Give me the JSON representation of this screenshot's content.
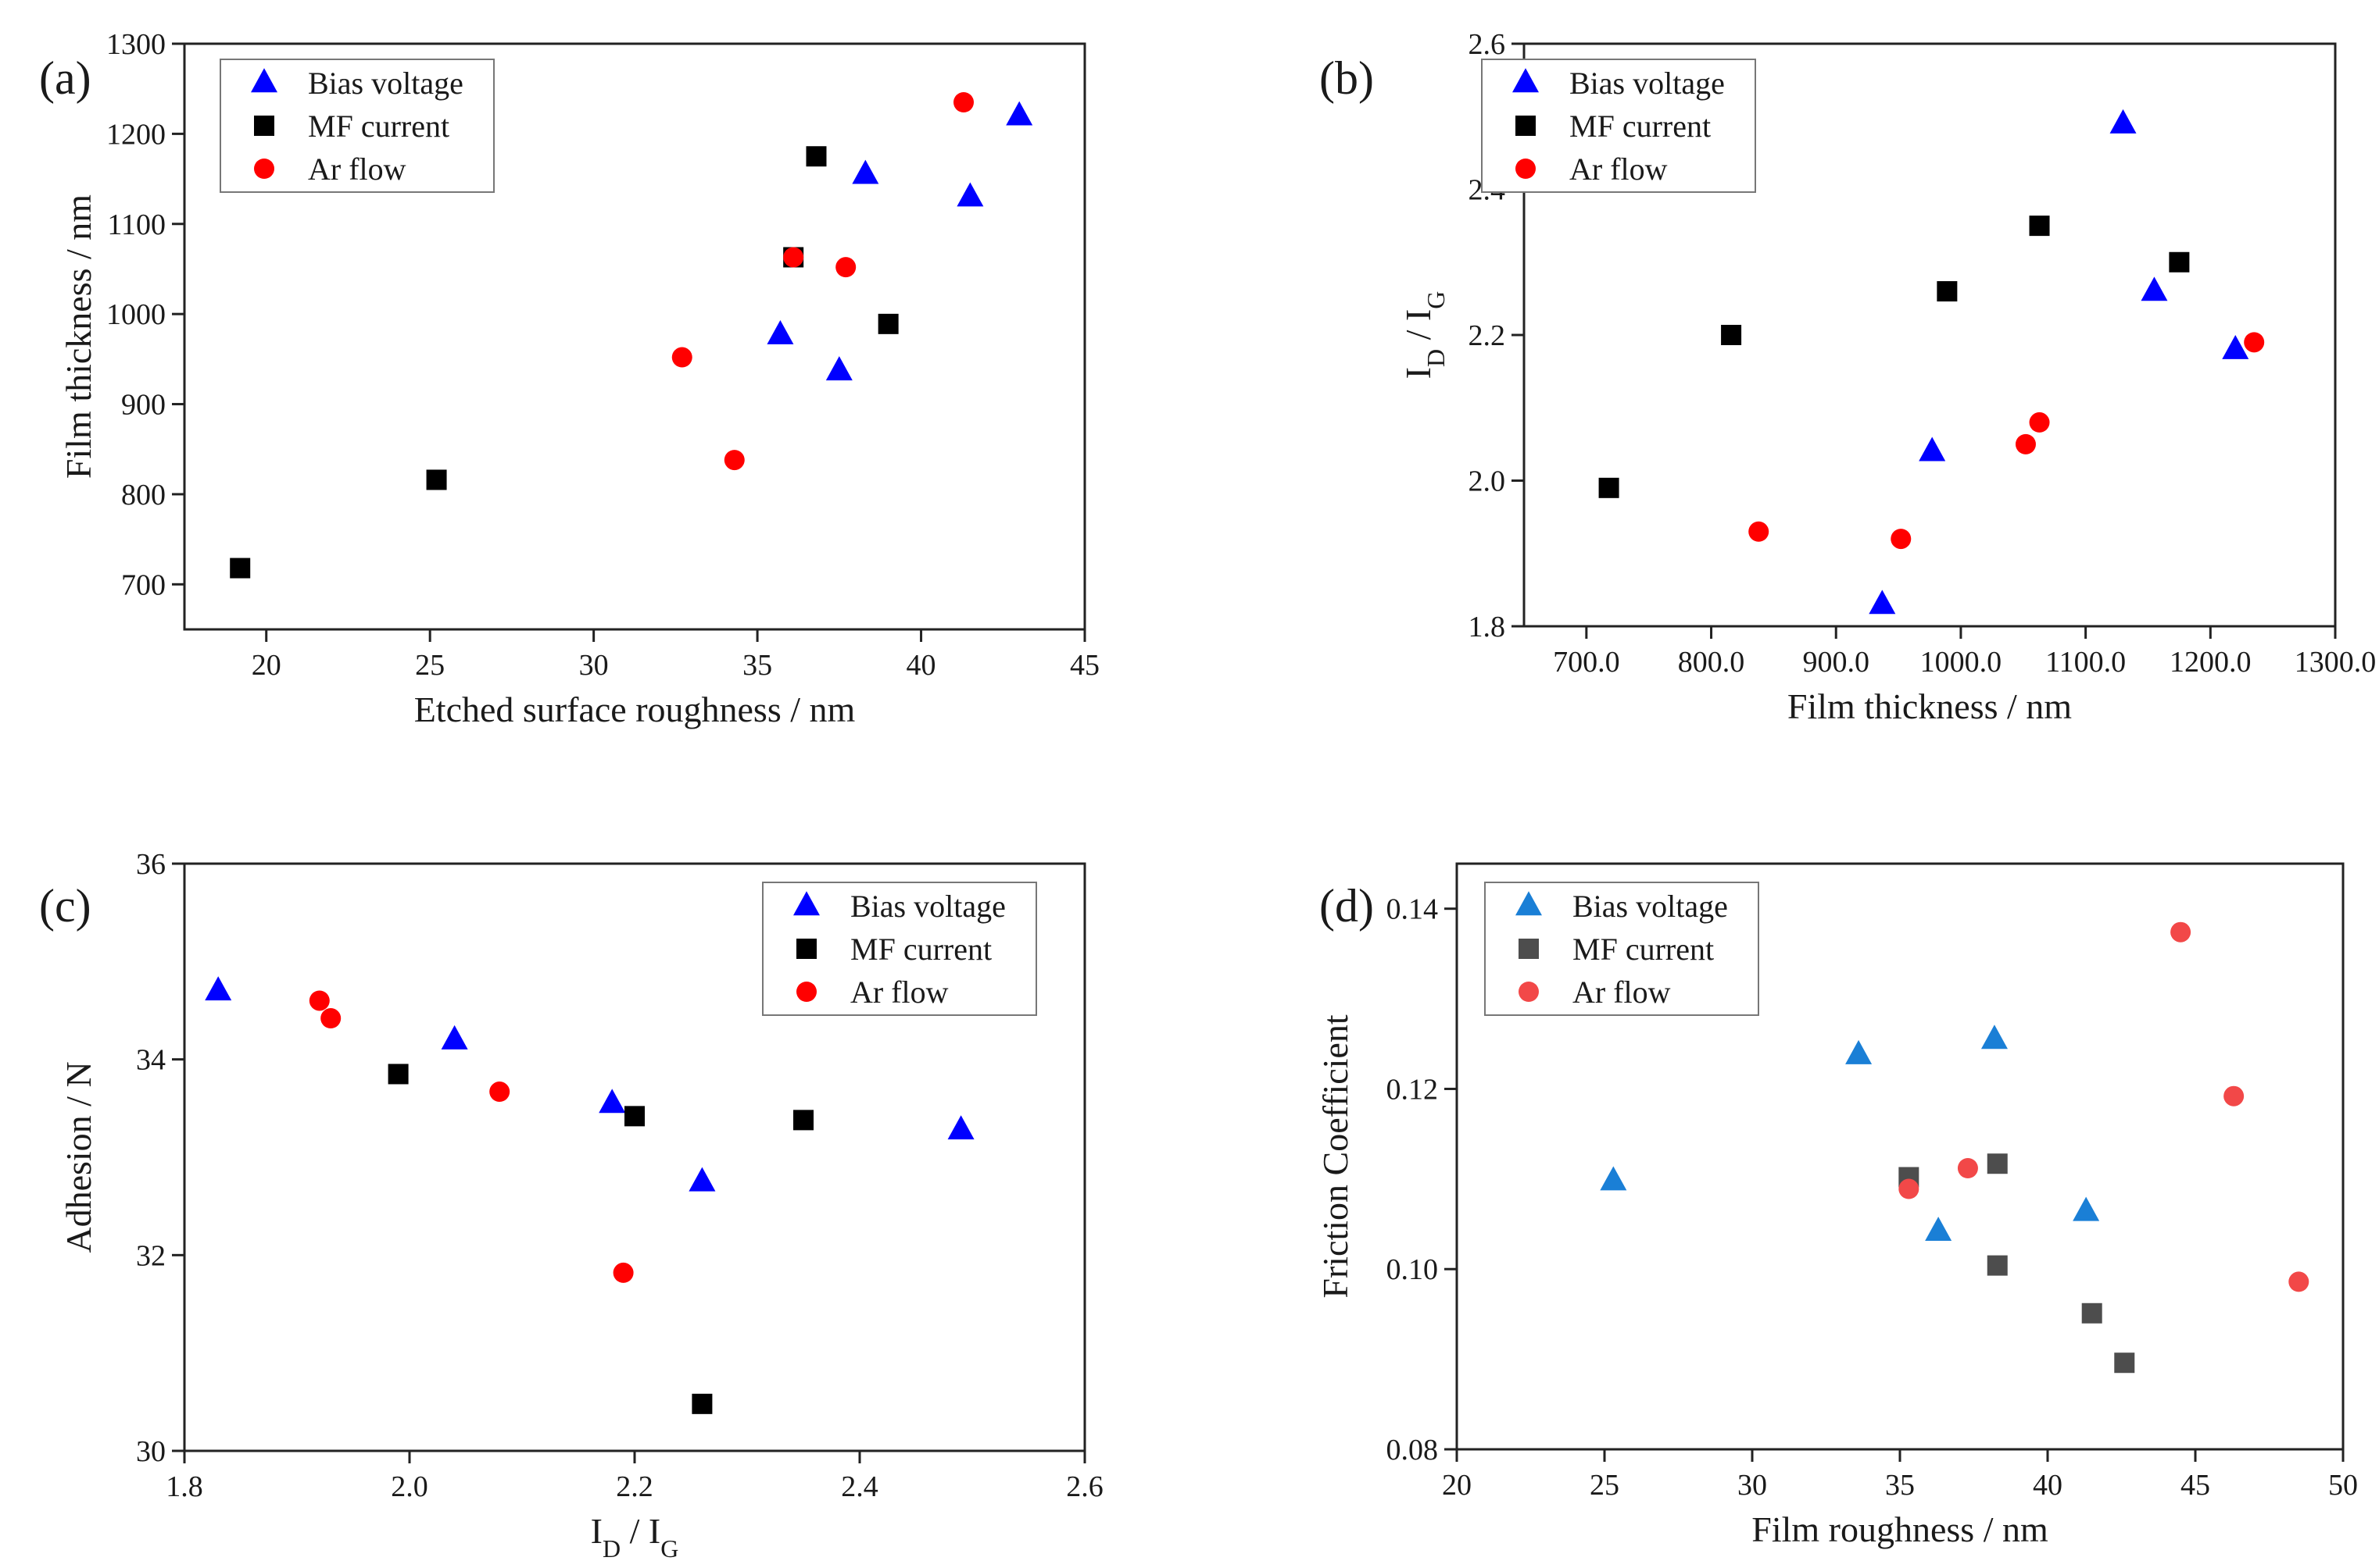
{
  "figure": {
    "panel_count": 4
  },
  "chart_data": [
    {
      "panel": "a",
      "panel_label": "(a)",
      "type": "scatter",
      "xlabel": "Etched surface roughness / nm",
      "ylabel": "Film thickness / nm",
      "xlim": [
        17.5,
        45
      ],
      "ylim": [
        650,
        1300
      ],
      "xticks": [
        20,
        25,
        30,
        35,
        40,
        45
      ],
      "yticks": [
        700,
        800,
        900,
        1000,
        1100,
        1200,
        1300
      ],
      "tick_decimals": 0,
      "legend_loc": "top-left",
      "series": [
        {
          "name": "Bias voltage",
          "marker": "triangle",
          "color": "#0000ff",
          "points": [
            [
              35.7,
              977
            ],
            [
              37.5,
              937
            ],
            [
              38.3,
              1155
            ],
            [
              41.5,
              1130
            ],
            [
              43.0,
              1220
            ]
          ]
        },
        {
          "name": "MF current",
          "marker": "square",
          "color": "#000000",
          "points": [
            [
              19.2,
              718
            ],
            [
              25.2,
              816
            ],
            [
              36.1,
              1063
            ],
            [
              36.8,
              1175
            ],
            [
              39.0,
              989
            ]
          ]
        },
        {
          "name": "Ar flow",
          "marker": "circle",
          "color": "#ff0000",
          "points": [
            [
              32.7,
              952
            ],
            [
              34.3,
              838
            ],
            [
              36.1,
              1063
            ],
            [
              37.7,
              1052
            ],
            [
              41.3,
              1235
            ]
          ]
        }
      ]
    },
    {
      "panel": "b",
      "panel_label": "(b)",
      "type": "scatter",
      "xlabel": "Film thickness / nm",
      "ylabel_main": "I",
      "ylabel_sub1": "D",
      "ylabel_mid": " / I",
      "ylabel_sub2": "G",
      "xlim": [
        650,
        1300
      ],
      "ylim": [
        1.8,
        2.6
      ],
      "xticks": [
        700,
        800,
        900,
        1000,
        1100,
        1200,
        1300
      ],
      "yticks": [
        1.8,
        2.0,
        2.2,
        2.4,
        2.6
      ],
      "tick_decimals": 1,
      "legend_loc": "top-left",
      "series": [
        {
          "name": "Bias voltage",
          "marker": "triangle",
          "color": "#0000ff",
          "points": [
            [
              937,
              1.83
            ],
            [
              977,
              2.04
            ],
            [
              1130,
              2.49
            ],
            [
              1155,
              2.26
            ],
            [
              1220,
              2.18
            ]
          ]
        },
        {
          "name": "MF current",
          "marker": "square",
          "color": "#000000",
          "points": [
            [
              718,
              1.99
            ],
            [
              816,
              2.2
            ],
            [
              989,
              2.26
            ],
            [
              1063,
              2.35
            ],
            [
              1175,
              2.3
            ]
          ]
        },
        {
          "name": "Ar flow",
          "marker": "circle",
          "color": "#ff0000",
          "points": [
            [
              838,
              1.93
            ],
            [
              952,
              1.92
            ],
            [
              1052,
              2.05
            ],
            [
              1063,
              2.08
            ],
            [
              1235,
              2.19
            ]
          ]
        }
      ]
    },
    {
      "panel": "c",
      "panel_label": "(c)",
      "type": "scatter",
      "xlabel_main": "I",
      "xlabel_sub1": "D",
      "xlabel_mid": " / I",
      "xlabel_sub2": "G",
      "ylabel": "Adhesion / N",
      "xlim": [
        1.8,
        2.6
      ],
      "ylim": [
        30,
        36
      ],
      "xticks": [
        1.8,
        2.0,
        2.2,
        2.4,
        2.6
      ],
      "yticks": [
        30,
        32,
        34,
        36
      ],
      "tick_decimals_x": 1,
      "tick_decimals_y": 0,
      "legend_loc": "top-right",
      "series": [
        {
          "name": "Bias voltage",
          "marker": "triangle",
          "color": "#0000ff",
          "points": [
            [
              1.83,
              34.7
            ],
            [
              2.04,
              34.2
            ],
            [
              2.18,
              33.55
            ],
            [
              2.26,
              32.75
            ],
            [
              2.49,
              33.28
            ]
          ]
        },
        {
          "name": "MF current",
          "marker": "square",
          "color": "#000000",
          "points": [
            [
              1.99,
              33.85
            ],
            [
              2.2,
              33.42
            ],
            [
              2.26,
              30.48
            ],
            [
              2.35,
              33.38
            ]
          ]
        },
        {
          "name": "Ar flow",
          "marker": "circle",
          "color": "#ff0000",
          "points": [
            [
              1.92,
              34.6
            ],
            [
              1.93,
              34.42
            ],
            [
              2.08,
              33.67
            ],
            [
              2.19,
              31.82
            ]
          ]
        }
      ]
    },
    {
      "panel": "d",
      "panel_label": "(d)",
      "type": "scatter",
      "xlabel": "Film roughness / nm",
      "ylabel": "Friction Coefficient",
      "xlim": [
        20,
        50
      ],
      "ylim": [
        0.08,
        0.145
      ],
      "xticks": [
        20,
        25,
        30,
        35,
        40,
        45,
        50
      ],
      "yticks": [
        0.08,
        0.1,
        0.12,
        0.14
      ],
      "tick_decimals_x": 0,
      "tick_decimals_y": 2,
      "legend_loc": "top-left",
      "series": [
        {
          "name": "Bias voltage",
          "marker": "triangle",
          "color": "#1a7fd6",
          "points": [
            [
              25.3,
              0.1098
            ],
            [
              33.6,
              0.1238
            ],
            [
              36.3,
              0.1042
            ],
            [
              38.2,
              0.1255
            ],
            [
              41.3,
              0.1064
            ]
          ]
        },
        {
          "name": "MF current",
          "marker": "square",
          "color": "#4d4d4d",
          "points": [
            [
              35.3,
              0.1102
            ],
            [
              38.3,
              0.1117
            ],
            [
              38.3,
              0.1004
            ],
            [
              41.5,
              0.0951
            ],
            [
              42.6,
              0.0896
            ]
          ]
        },
        {
          "name": "Ar flow",
          "marker": "circle",
          "color": "#f24848",
          "points": [
            [
              35.3,
              0.1089
            ],
            [
              37.3,
              0.1112
            ],
            [
              44.5,
              0.1374
            ],
            [
              46.3,
              0.1192
            ],
            [
              48.5,
              0.0986
            ]
          ]
        }
      ]
    }
  ]
}
